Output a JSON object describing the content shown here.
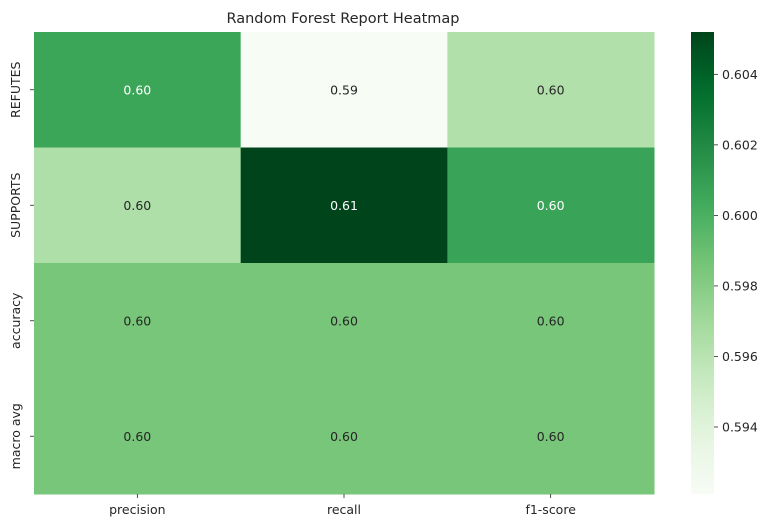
{
  "chart_data": {
    "type": "heatmap",
    "title": "Random Forest Report Heatmap",
    "rows": [
      "REFUTES",
      "SUPPORTS",
      "accuracy",
      "macro avg"
    ],
    "columns": [
      "precision",
      "recall",
      "f1-score"
    ],
    "values": [
      [
        0.6006,
        0.5921,
        0.5963
      ],
      [
        0.5964,
        0.6052,
        0.6007
      ],
      [
        0.5985,
        0.5985,
        0.5985
      ],
      [
        0.5985,
        0.5985,
        0.5985
      ]
    ],
    "labels": [
      [
        "0.60",
        "0.59",
        "0.60"
      ],
      [
        "0.60",
        "0.61",
        "0.60"
      ],
      [
        "0.60",
        "0.60",
        "0.60"
      ],
      [
        "0.60",
        "0.60",
        "0.60"
      ]
    ],
    "colormap": "Greens",
    "vmin": 0.5921,
    "vmax": 0.6052,
    "colorbar": {
      "ticks": [
        0.594,
        0.596,
        0.598,
        0.6,
        0.602,
        0.604
      ],
      "tick_labels": [
        "0.594",
        "0.596",
        "0.598",
        "0.600",
        "0.602",
        "0.604"
      ]
    },
    "xlabel": "",
    "ylabel": ""
  }
}
